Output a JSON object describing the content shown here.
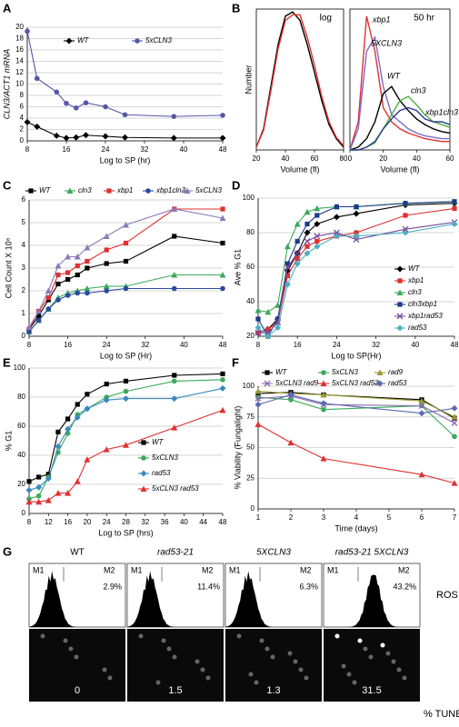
{
  "chart_data": [
    {
      "panel": "A",
      "type": "line",
      "xlabel": "Log to SP (hr)",
      "ylabel": "CLN3/ACT1 mRNA",
      "xlim": [
        8,
        48
      ],
      "xticks": [
        8,
        16,
        24,
        32,
        40,
        48
      ],
      "ylim": [
        0,
        20
      ],
      "yticks": [
        0,
        2,
        4,
        6,
        8,
        10,
        12,
        14,
        16,
        18,
        20
      ],
      "grid": true,
      "legend": "top",
      "series": [
        {
          "name": "WT",
          "color": "#000000",
          "marker": "diamond",
          "x": [
            8,
            10,
            14,
            16,
            18,
            20,
            24,
            28,
            38,
            48
          ],
          "values": [
            3.3,
            2.5,
            0.9,
            0.5,
            0.6,
            1.0,
            0.8,
            0.6,
            0.5,
            0.5
          ]
        },
        {
          "name": "5xCLN3",
          "color": "#5558a8",
          "marker": "circle",
          "x": [
            8,
            10,
            14,
            16,
            18,
            20,
            24,
            28,
            38,
            48
          ],
          "values": [
            19.3,
            11.0,
            8.6,
            6.6,
            5.8,
            6.7,
            6.0,
            4.6,
            4.3,
            4.5
          ]
        }
      ]
    },
    {
      "panel": "B",
      "type": "line",
      "annotation": "log",
      "xlabel": "Volume (fl)",
      "ylabel": "Number",
      "xlim": [
        20,
        80
      ],
      "xticks": [
        20,
        40,
        60,
        80
      ],
      "ylim": [
        0,
        100
      ],
      "legend": "none",
      "series": [
        {
          "color": "#000000",
          "marker": "none",
          "x": [
            20,
            25,
            30,
            35,
            40,
            45,
            50,
            55,
            60,
            65,
            70,
            75,
            80
          ],
          "values": [
            2,
            15,
            45,
            75,
            95,
            98,
            92,
            75,
            55,
            35,
            18,
            8,
            2
          ]
        },
        {
          "color": "#e03030",
          "marker": "none",
          "x": [
            20,
            25,
            30,
            35,
            40,
            45,
            50,
            55,
            60,
            65,
            70,
            75,
            80
          ],
          "values": [
            2,
            14,
            42,
            72,
            92,
            96,
            96,
            80,
            60,
            38,
            20,
            9,
            3
          ]
        }
      ]
    },
    {
      "type": "line",
      "annotation": "50 hr",
      "xlabel": "Volume (fl)",
      "xlim": [
        0,
        60
      ],
      "xticks": [
        0,
        20,
        40,
        60
      ],
      "ylim": [
        0,
        100
      ],
      "legend": "inline",
      "series": [
        {
          "name": "xbp1",
          "color": "#e03030",
          "marker": "none",
          "x": [
            0,
            5,
            10,
            15,
            20,
            25,
            30,
            35,
            40,
            45,
            50,
            55,
            60
          ],
          "values": [
            0,
            20,
            95,
            70,
            30,
            20,
            15,
            12,
            10,
            8,
            7,
            6,
            6
          ]
        },
        {
          "name": "5XCLN3",
          "color": "#7a6ac8",
          "marker": "none",
          "x": [
            0,
            5,
            10,
            15,
            20,
            25,
            30,
            35,
            40,
            45,
            50,
            55,
            60
          ],
          "values": [
            0,
            15,
            70,
            80,
            45,
            25,
            20,
            15,
            12,
            10,
            9,
            8,
            8
          ]
        },
        {
          "name": "WT",
          "color": "#000000",
          "marker": "none",
          "x": [
            0,
            5,
            10,
            15,
            20,
            25,
            30,
            35,
            40,
            45,
            50,
            55,
            60
          ],
          "values": [
            0,
            2,
            8,
            20,
            40,
            45,
            35,
            28,
            22,
            18,
            15,
            13,
            12
          ]
        },
        {
          "name": "cln3",
          "color": "#50b040",
          "marker": "none",
          "x": [
            0,
            5,
            10,
            15,
            20,
            25,
            30,
            35,
            40,
            45,
            50,
            55,
            60
          ],
          "values": [
            0,
            0,
            2,
            5,
            15,
            25,
            35,
            38,
            32,
            25,
            20,
            18,
            16
          ]
        },
        {
          "name": "xbp1cln3",
          "color": "#2a3a90",
          "marker": "none",
          "x": [
            0,
            5,
            10,
            15,
            20,
            25,
            30,
            35,
            40,
            45,
            50,
            55,
            60
          ],
          "values": [
            0,
            0,
            2,
            6,
            15,
            22,
            28,
            30,
            28,
            22,
            20,
            20,
            18
          ]
        }
      ]
    },
    {
      "panel": "C",
      "type": "line",
      "xlabel": "Log to SP (Hr)",
      "ylabel": "Cell Count X 10⁸",
      "xlim": [
        8,
        48
      ],
      "xticks": [
        8,
        16,
        24,
        32,
        40,
        48
      ],
      "ylim": [
        0,
        6
      ],
      "yticks": [
        0,
        1,
        2,
        3,
        4,
        5,
        6
      ],
      "grid": true,
      "legend": "top",
      "series": [
        {
          "name": "WT",
          "color": "#000000",
          "marker": "square",
          "x": [
            8,
            10,
            12,
            14,
            16,
            18,
            20,
            24,
            28,
            38,
            48
          ],
          "values": [
            0.3,
            0.9,
            1.6,
            2.3,
            2.5,
            2.7,
            3.0,
            3.2,
            3.3,
            4.4,
            4.1
          ]
        },
        {
          "name": "cln3",
          "color": "#3aaa5a",
          "marker": "triangle",
          "x": [
            8,
            10,
            12,
            14,
            16,
            18,
            20,
            24,
            28,
            38,
            48
          ],
          "values": [
            0.2,
            0.7,
            1.2,
            1.7,
            1.9,
            2.0,
            2.1,
            2.2,
            2.2,
            2.7,
            2.7
          ]
        },
        {
          "name": "xbp1",
          "color": "#e03030",
          "marker": "square",
          "x": [
            8,
            10,
            12,
            14,
            16,
            18,
            20,
            24,
            28,
            38,
            48
          ],
          "values": [
            0.3,
            1.1,
            1.7,
            2.7,
            2.8,
            3.1,
            3.3,
            3.8,
            4.1,
            5.6,
            5.6
          ]
        },
        {
          "name": "xbp1cln3",
          "color": "#2a4aa0",
          "marker": "circle",
          "x": [
            8,
            10,
            12,
            14,
            16,
            18,
            20,
            24,
            28,
            38,
            48
          ],
          "values": [
            0.2,
            0.7,
            1.2,
            1.6,
            1.8,
            1.9,
            1.9,
            2.0,
            2.1,
            2.1,
            2.1
          ]
        },
        {
          "name": "5xCLN3",
          "color": "#8a7ab8",
          "marker": "triangle",
          "x": [
            8,
            10,
            12,
            14,
            16,
            18,
            20,
            24,
            28,
            38,
            48
          ],
          "values": [
            0.4,
            1.1,
            2.0,
            3.1,
            3.5,
            3.5,
            3.9,
            4.4,
            4.9,
            5.6,
            5.2
          ]
        }
      ]
    },
    {
      "panel": "D",
      "type": "line",
      "xlabel": "Log to SP(Hr)",
      "ylabel": "Ave % G1",
      "xlim": [
        8,
        48
      ],
      "xticks": [
        8,
        16,
        24,
        32,
        40,
        48
      ],
      "ylim": [
        20,
        100
      ],
      "yticks": [
        20,
        40,
        60,
        80,
        100
      ],
      "grid": true,
      "legend": "right",
      "series": [
        {
          "name": "WT",
          "color": "#000000",
          "marker": "diamond",
          "x": [
            8,
            10,
            12,
            14,
            16,
            18,
            20,
            24,
            28,
            38,
            48
          ],
          "values": [
            22,
            24,
            30,
            58,
            68,
            80,
            85,
            89,
            91,
            96,
            97
          ]
        },
        {
          "name": "xbp1",
          "color": "#e03030",
          "marker": "square",
          "x": [
            8,
            10,
            12,
            14,
            16,
            18,
            20,
            24,
            28,
            38,
            48
          ],
          "values": [
            22,
            24,
            28,
            55,
            65,
            72,
            75,
            78,
            80,
            90,
            94
          ]
        },
        {
          "name": "cln3",
          "color": "#3aaa5a",
          "marker": "triangle",
          "x": [
            8,
            10,
            12,
            14,
            16,
            18,
            20,
            24,
            28,
            38,
            48
          ],
          "values": [
            35,
            34,
            38,
            72,
            85,
            92,
            94,
            95,
            95,
            97,
            98
          ]
        },
        {
          "name": "cln3xbp1",
          "color": "#1a3a8a",
          "marker": "square",
          "x": [
            8,
            10,
            12,
            14,
            16,
            18,
            20,
            24,
            28,
            38,
            48
          ],
          "values": [
            30,
            20,
            30,
            62,
            75,
            85,
            90,
            95,
            95,
            97,
            98
          ]
        },
        {
          "name": "xbp1rad53",
          "color": "#7a4a9a",
          "marker": "x",
          "x": [
            8,
            10,
            12,
            14,
            16,
            18,
            20,
            24,
            28,
            38,
            48
          ],
          "values": [
            22,
            22,
            28,
            60,
            68,
            75,
            78,
            80,
            76,
            82,
            86
          ]
        },
        {
          "name": "rad53",
          "color": "#4ab0c0",
          "marker": "diamond",
          "x": [
            8,
            10,
            12,
            14,
            16,
            18,
            20,
            24,
            28,
            38,
            48
          ],
          "values": [
            25,
            20,
            25,
            50,
            62,
            68,
            72,
            78,
            78,
            80,
            85
          ]
        }
      ]
    },
    {
      "panel": "E",
      "type": "line",
      "xlabel": "Log to SP (hrs)",
      "ylabel": "% G1",
      "xlim": [
        8,
        48
      ],
      "xticks": [
        8,
        12,
        16,
        20,
        24,
        28,
        32,
        36,
        40,
        44,
        48
      ],
      "ylim": [
        0,
        100
      ],
      "yticks": [
        0,
        20,
        40,
        60,
        80,
        100
      ],
      "grid": true,
      "legend": "right",
      "series": [
        {
          "name": "WT",
          "color": "#000000",
          "marker": "square",
          "x": [
            8,
            10,
            12,
            14,
            16,
            18,
            20,
            24,
            28,
            38,
            48
          ],
          "values": [
            22,
            25,
            27,
            56,
            65,
            75,
            82,
            89,
            91,
            95,
            96
          ]
        },
        {
          "name": "5xCLN3",
          "color": "#3aaa5a",
          "marker": "circle",
          "x": [
            8,
            10,
            12,
            14,
            16,
            18,
            20,
            24,
            28,
            38,
            48
          ],
          "values": [
            10,
            12,
            25,
            42,
            55,
            68,
            72,
            80,
            84,
            91,
            92
          ]
        },
        {
          "name": "rad53",
          "color": "#3a8ac0",
          "marker": "diamond",
          "x": [
            8,
            10,
            12,
            14,
            16,
            18,
            20,
            24,
            28,
            38,
            48
          ],
          "values": [
            16,
            18,
            24,
            46,
            58,
            66,
            72,
            78,
            79,
            79,
            86
          ]
        },
        {
          "name": "5xCLN3 rad53",
          "color": "#e03030",
          "marker": "triangle",
          "x": [
            8,
            10,
            12,
            14,
            16,
            18,
            20,
            24,
            28,
            38,
            48
          ],
          "values": [
            8,
            8,
            9,
            14,
            14,
            22,
            37,
            44,
            47,
            59,
            71
          ]
        }
      ]
    },
    {
      "panel": "F",
      "type": "line",
      "xlabel": "Time (days)",
      "ylabel": "% Viability (Fungalight)",
      "xlim": [
        1,
        7
      ],
      "xticks": [
        1,
        2,
        3,
        4,
        5,
        6,
        7
      ],
      "ylim": [
        0,
        100
      ],
      "yticks": [
        0,
        25,
        50,
        75,
        100
      ],
      "grid": true,
      "legend": "top",
      "series": [
        {
          "name": "WT",
          "color": "#000000",
          "marker": "square",
          "x": [
            1,
            2,
            3,
            6,
            7
          ],
          "values": [
            94,
            95,
            93,
            89,
            74
          ]
        },
        {
          "name": "5xCLN3",
          "color": "#3aaa5a",
          "marker": "circle",
          "x": [
            1,
            2,
            3,
            6,
            7
          ],
          "values": [
            91,
            89,
            81,
            84,
            59
          ]
        },
        {
          "name": "rad9",
          "color": "#9a9a30",
          "marker": "triangle",
          "x": [
            1,
            2,
            3,
            6,
            7
          ],
          "values": [
            96,
            94,
            93,
            88,
            75
          ]
        },
        {
          "name": "5xCLN3 rad9",
          "color": "#8a6ab0",
          "marker": "x",
          "x": [
            1,
            2,
            3,
            6,
            7
          ],
          "values": [
            90,
            92,
            85,
            84,
            70
          ]
        },
        {
          "name": "5xCLN3 rad53",
          "color": "#e03030",
          "marker": "triangle",
          "x": [
            1,
            2,
            3,
            6,
            7
          ],
          "values": [
            69,
            54,
            41,
            28,
            21
          ]
        },
        {
          "name": "rad53",
          "color": "#5a6ab0",
          "marker": "diamond",
          "x": [
            1,
            2,
            3,
            6,
            7
          ],
          "values": [
            85,
            93,
            86,
            78,
            82
          ]
        }
      ]
    }
  ],
  "panel_g": {
    "panel": "G",
    "gates": [
      "M1",
      "M2"
    ],
    "ros_title": "ROS",
    "tunel_title": "% TUNEL",
    "columns": [
      {
        "title": "WT",
        "ros": "2.9%",
        "tunel": 0
      },
      {
        "title": "rad53-21",
        "ros": "11.4%",
        "tunel": 1.5
      },
      {
        "title": "5XCLN3",
        "ros": "6.3%",
        "tunel": 1.3
      },
      {
        "title": "rad53-21 5XCLN3",
        "ros": "43.2%",
        "tunel": 31.5
      }
    ]
  }
}
